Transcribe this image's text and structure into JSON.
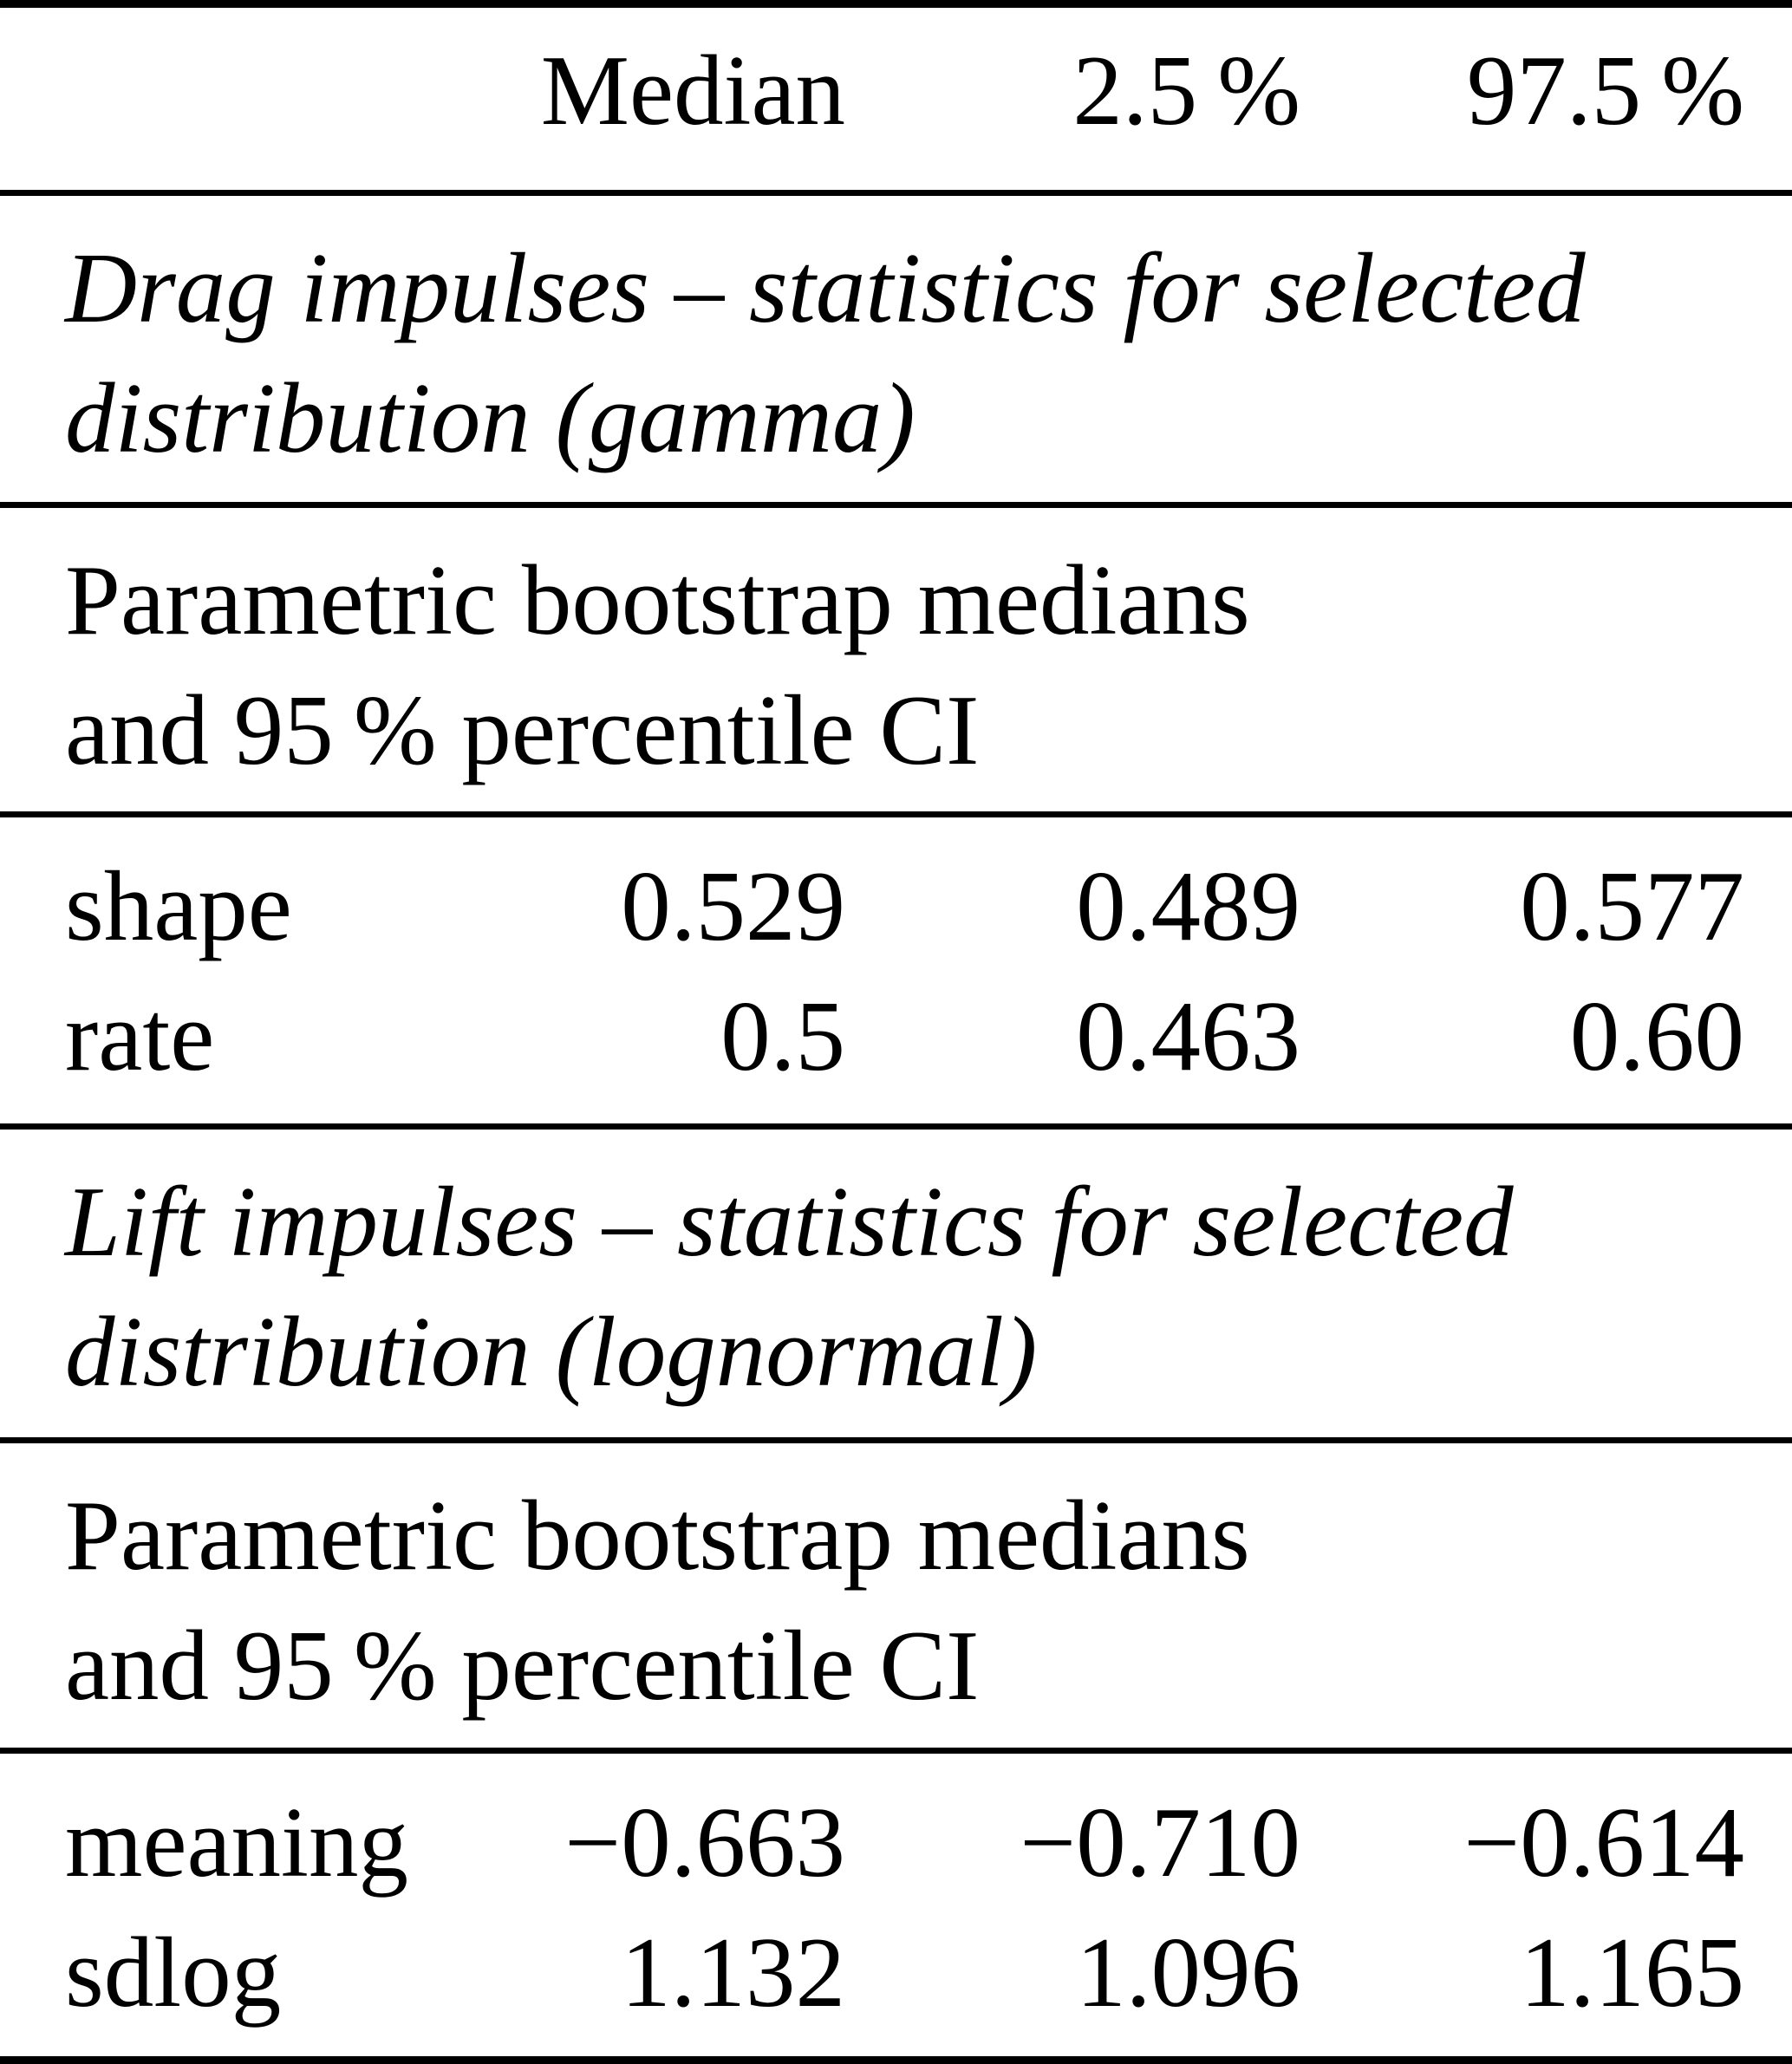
{
  "table": {
    "header": {
      "corner": "",
      "median": "Median",
      "p2_5": "2.5 %",
      "p97_5": "97.5 %"
    },
    "sections": [
      {
        "title_lines": [
          "Drag impulses – statistics for selected",
          "distribution (gamma)"
        ],
        "subtitle_lines": [
          "Parametric bootstrap medians",
          "and 95 % percentile CI"
        ],
        "rows": [
          {
            "label": "shape",
            "median": "0.529",
            "p2_5": "0.489",
            "p97_5": "0.577"
          },
          {
            "label": "rate",
            "median": "0.5",
            "p2_5": "0.463",
            "p97_5": "0.60"
          }
        ]
      },
      {
        "title_lines": [
          "Lift impulses – statistics for selected",
          "distribution (lognormal)"
        ],
        "subtitle_lines": [
          "Parametric bootstrap medians",
          "and 95 % percentile CI"
        ],
        "rows": [
          {
            "label": "meaning",
            "median": "−0.663",
            "p2_5": "−0.710",
            "p97_5": "−0.614"
          },
          {
            "label": "sdlog",
            "median": "1.132",
            "p2_5": "1.096",
            "p97_5": "1.165"
          }
        ]
      }
    ]
  }
}
